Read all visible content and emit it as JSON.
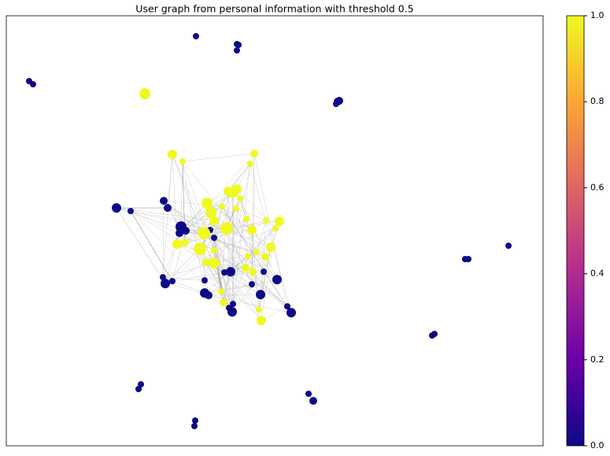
{
  "chart_data": {
    "type": "network",
    "title": "User graph from personal information with threshold 0.5",
    "values": [
      0,
      0,
      0,
      0,
      0,
      0,
      0,
      0,
      0,
      0,
      0,
      0,
      0,
      0,
      0,
      0,
      0,
      0,
      0,
      0,
      0,
      0,
      0,
      0,
      0,
      0,
      0,
      0,
      0,
      0,
      0,
      0,
      0,
      0,
      0,
      0,
      0,
      0,
      0,
      0,
      0,
      0,
      0,
      0,
      0,
      0,
      1,
      1,
      1,
      1,
      1,
      1,
      1,
      1,
      1,
      1,
      1,
      1,
      1,
      1,
      1,
      1,
      1,
      1,
      1,
      1,
      1,
      1,
      1,
      1,
      1,
      1,
      1,
      1,
      1,
      1,
      1,
      1,
      1,
      1,
      1,
      1,
      1
    ],
    "colormap": [
      "#0d0887",
      "#6a00a8",
      "#b12a90",
      "#e16462",
      "#fca636",
      "#f0f921"
    ],
    "clim": [
      0,
      1
    ],
    "cticks": [
      {
        "value": 0,
        "label": "0.0"
      },
      0.2,
      0.4,
      0.6,
      0.8,
      {
        "value": 1,
        "label": "1.0"
      }
    ]
  }
}
